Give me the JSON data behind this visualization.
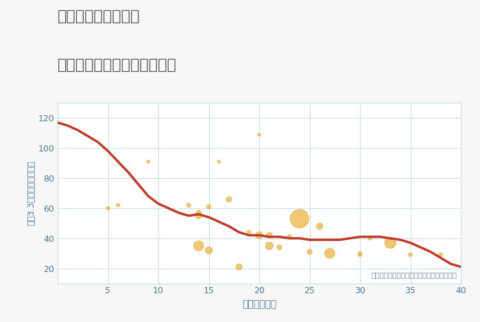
{
  "title_line1": "兵庫県姫路市書写の",
  "title_line2": "築年数別中古マンション価格",
  "xlabel": "築年数（年）",
  "ylabel": "坪（3.3㎡）単価（万円）",
  "background_color": "#f7f7f7",
  "plot_bg_color": "#ffffff",
  "grid_color": "#c8dde8",
  "xlim": [
    0,
    40
  ],
  "ylim": [
    10,
    130
  ],
  "xticks": [
    5,
    10,
    15,
    20,
    25,
    30,
    35,
    40
  ],
  "yticks": [
    20,
    40,
    60,
    80,
    100,
    120
  ],
  "line_x": [
    0,
    1,
    2,
    3,
    4,
    5,
    6,
    7,
    8,
    9,
    10,
    11,
    12,
    13,
    14,
    15,
    16,
    17,
    18,
    19,
    20,
    21,
    22,
    23,
    24,
    25,
    26,
    27,
    28,
    29,
    30,
    31,
    32,
    33,
    34,
    35,
    36,
    37,
    38,
    39,
    40
  ],
  "line_y": [
    117,
    115,
    112,
    108,
    104,
    98,
    91,
    84,
    76,
    68,
    63,
    60,
    57,
    55,
    56,
    54,
    51,
    48,
    44,
    42,
    42,
    41,
    41,
    40,
    40,
    39,
    39,
    39,
    39,
    40,
    41,
    41,
    41,
    40,
    39,
    37,
    34,
    31,
    27,
    23,
    21
  ],
  "line_color": "#c0392b",
  "line_width": 2.5,
  "scatter_x": [
    5,
    6,
    9,
    13,
    14,
    14,
    14,
    15,
    15,
    16,
    17,
    18,
    19,
    20,
    20,
    21,
    21,
    22,
    23,
    24,
    25,
    26,
    27,
    30,
    30,
    31,
    33,
    35,
    38
  ],
  "scatter_y": [
    60,
    62,
    91,
    62,
    55,
    57,
    35,
    61,
    32,
    91,
    66,
    21,
    44,
    109,
    42,
    42,
    35,
    34,
    41,
    53,
    31,
    48,
    30,
    29,
    30,
    40,
    37,
    29,
    29
  ],
  "scatter_size": [
    30,
    25,
    20,
    35,
    80,
    50,
    200,
    40,
    100,
    20,
    60,
    80,
    30,
    20,
    100,
    70,
    120,
    50,
    40,
    700,
    50,
    80,
    200,
    30,
    30,
    30,
    250,
    30,
    30
  ],
  "scatter_color": "#f0c060",
  "scatter_edge_color": "#dda830",
  "annotation": "円の大きさは、取引のあった物件面積を示す",
  "annotation_color": "#6888a0",
  "title_color": "#505050",
  "axis_label_color": "#4a7a9b",
  "tick_color": "#4a7a9b"
}
